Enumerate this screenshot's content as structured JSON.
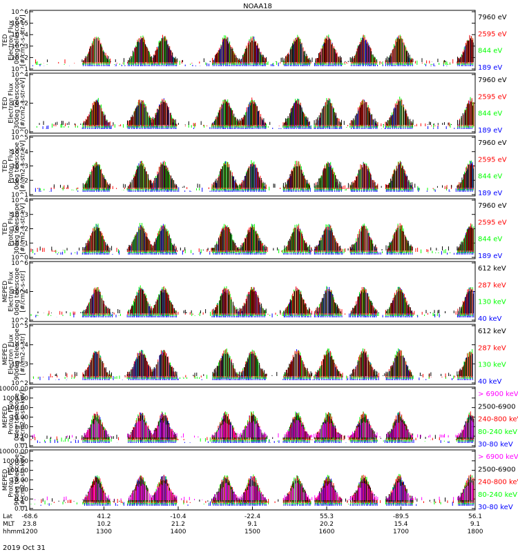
{
  "title": "NOAA18",
  "date_label": "2019 Oct 31",
  "colors": {
    "black": "#000000",
    "red": "#ff0000",
    "green": "#00ff00",
    "blue": "#0000ff",
    "magenta": "#ff00ff"
  },
  "chart_data": [
    {
      "type": "scatter",
      "ylabel_lines": [
        "TED",
        "Electron Flux",
        "0deg telescope",
        "[#/cm2-s-str-eV]"
      ],
      "yscale": "log",
      "yticks": [
        "10^1",
        "10^2",
        "10^3",
        "10^4",
        "10^5",
        "10^6"
      ],
      "ylim": [
        10,
        1000000
      ],
      "channels": [
        {
          "name": "7960 eV",
          "color": "black"
        },
        {
          "name": "2595 eV",
          "color": "red"
        },
        {
          "name": "844 eV",
          "color": "green"
        },
        {
          "name": "189 eV",
          "color": "blue"
        }
      ]
    },
    {
      "type": "scatter",
      "ylabel_lines": [
        "TED",
        "Electron Flux",
        "30deg telescope",
        "[#/cm2-s-str-eV]"
      ],
      "yscale": "log",
      "yticks": [
        "10^0",
        "10^2",
        "10^4"
      ],
      "ylim": [
        1,
        100000
      ],
      "channels": [
        {
          "name": "7960 eV",
          "color": "black"
        },
        {
          "name": "2595 eV",
          "color": "red"
        },
        {
          "name": "844 eV",
          "color": "green"
        },
        {
          "name": "189 eV",
          "color": "blue"
        }
      ]
    },
    {
      "type": "scatter",
      "ylabel_lines": [
        "TED",
        "Proton Flux",
        "0deg telescope",
        "[#/cm2-s-str-eV]"
      ],
      "yscale": "log",
      "yticks": [
        "10^1",
        "10^2",
        "10^3",
        "10^4",
        "10^5"
      ],
      "ylim": [
        10,
        100000
      ],
      "channels": [
        {
          "name": "7960 eV",
          "color": "black"
        },
        {
          "name": "2595 eV",
          "color": "red"
        },
        {
          "name": "844 eV",
          "color": "green"
        },
        {
          "name": "189 eV",
          "color": "blue"
        }
      ]
    },
    {
      "type": "scatter",
      "ylabel_lines": [
        "TED",
        "Proton Flux",
        "30deg telescope",
        "[#/cm2-s-str-eV]"
      ],
      "yscale": "log",
      "yticks": [
        "10^0",
        "10^1",
        "10^2",
        "10^3",
        "10^4"
      ],
      "ylim": [
        1,
        100000
      ],
      "channels": [
        {
          "name": "7960 eV",
          "color": "black"
        },
        {
          "name": "2595 eV",
          "color": "red"
        },
        {
          "name": "844 eV",
          "color": "green"
        },
        {
          "name": "189 eV",
          "color": "blue"
        }
      ]
    },
    {
      "type": "scatter",
      "ylabel_lines": [
        "MEPED",
        "Electron Flux",
        "0deg telescope",
        "[#/cm2-s-str]"
      ],
      "yscale": "log",
      "yticks": [
        "10^2",
        "10^4",
        "10^6"
      ],
      "ylim": [
        100,
        10000000
      ],
      "channels": [
        {
          "name": "612 keV",
          "color": "black"
        },
        {
          "name": "287 keV",
          "color": "red"
        },
        {
          "name": "130 keV",
          "color": "green"
        },
        {
          "name": "40 keV",
          "color": "blue"
        }
      ]
    },
    {
      "type": "scatter",
      "ylabel_lines": [
        "MEPED",
        "Electron Flux",
        "90deg telescope",
        "[#/cm2-s-str]"
      ],
      "yscale": "log",
      "yticks": [
        "10^2",
        "10^3",
        "10^4",
        "10^5"
      ],
      "ylim": [
        100,
        1000000
      ],
      "channels": [
        {
          "name": "612 keV",
          "color": "black"
        },
        {
          "name": "287 keV",
          "color": "red"
        },
        {
          "name": "130 keV",
          "color": "green"
        },
        {
          "name": "40 keV",
          "color": "blue"
        }
      ]
    },
    {
      "type": "scatter",
      "ylabel_lines": [
        "MEPED",
        "Proton Flux",
        "0deg telescope",
        "[#/cm2-s-str-keV]"
      ],
      "yscale": "log",
      "yticks": [
        "0.01",
        "0.10",
        "1.00",
        "10.00",
        "100.00",
        "1000.00",
        "10000.00"
      ],
      "ylim": [
        0.01,
        10000
      ],
      "channels": [
        {
          "name": "> 6900 keV",
          "color": "magenta"
        },
        {
          "name": "2500-6900",
          "color": "black"
        },
        {
          "name": "240-800 keV",
          "color": "red"
        },
        {
          "name": "80-240 keV",
          "color": "green"
        },
        {
          "name": "30-80 keV",
          "color": "blue"
        }
      ]
    },
    {
      "type": "scatter",
      "ylabel_lines": [
        "MEPED",
        "Proton Flux",
        "90deg telescope",
        "[#/cm2-s-str-keV]"
      ],
      "yscale": "log",
      "yticks": [
        "0.01",
        "0.10",
        "1.00",
        "10.00",
        "100.00",
        "1000.00",
        "10000.00"
      ],
      "ylim": [
        0.01,
        10000
      ],
      "channels": [
        {
          "name": "> 6900 keV",
          "color": "magenta"
        },
        {
          "name": "2500-6900",
          "color": "black"
        },
        {
          "name": "240-800 keV",
          "color": "red"
        },
        {
          "name": "80-240 keV",
          "color": "green"
        },
        {
          "name": "30-80 keV",
          "color": "blue"
        }
      ]
    }
  ],
  "xaxis": {
    "row_labels": [
      "Lat",
      "MLT",
      "hhmm"
    ],
    "columns": [
      {
        "lat": "-68.6",
        "mlt": "23.8",
        "hhmm": "1200"
      },
      {
        "lat": "41.2",
        "mlt": "10.2",
        "hhmm": "1300"
      },
      {
        "lat": "-10.4",
        "mlt": "21.2",
        "hhmm": "1400"
      },
      {
        "lat": "-22.4",
        "mlt": "9.1",
        "hhmm": "1500"
      },
      {
        "lat": "55.3",
        "mlt": "20.2",
        "hhmm": "1600"
      },
      {
        "lat": "-89.5",
        "mlt": "15.4",
        "hhmm": "1700"
      },
      {
        "lat": "56.1",
        "mlt": "9.1",
        "hhmm": "1800"
      }
    ]
  }
}
